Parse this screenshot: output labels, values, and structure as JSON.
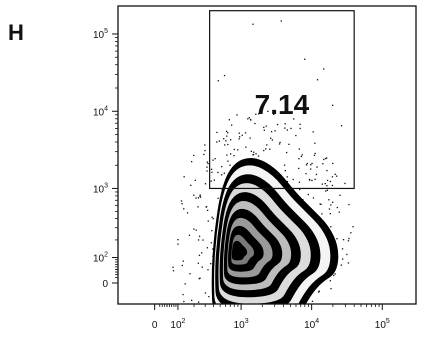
{
  "panel_label": "H",
  "chart_data": {
    "type": "density",
    "plot_style": "zebra contour plot with outliers",
    "x_axis": {
      "scale": "biexponential",
      "ticks": [
        "0",
        "10^2",
        "10^3",
        "10^4",
        "10^5"
      ],
      "xlabel": ""
    },
    "y_axis": {
      "scale": "biexponential",
      "ticks": [
        "0",
        "10^2",
        "10^3",
        "10^4",
        "10^5"
      ],
      "ylabel": ""
    },
    "population": {
      "center": {
        "x": 1000,
        "y": 150
      },
      "x_range": [
        300,
        8000
      ],
      "y_range": [
        0,
        1800
      ]
    },
    "gate": {
      "shape": "rectangle",
      "x_range": [
        350,
        40000
      ],
      "y_range": [
        1000,
        200000
      ],
      "percent": "7.14"
    },
    "grid": false,
    "legend": "none",
    "colors": {
      "points": "#111111",
      "fill_dark": "#000000",
      "fill_light": "#ffffff"
    }
  }
}
